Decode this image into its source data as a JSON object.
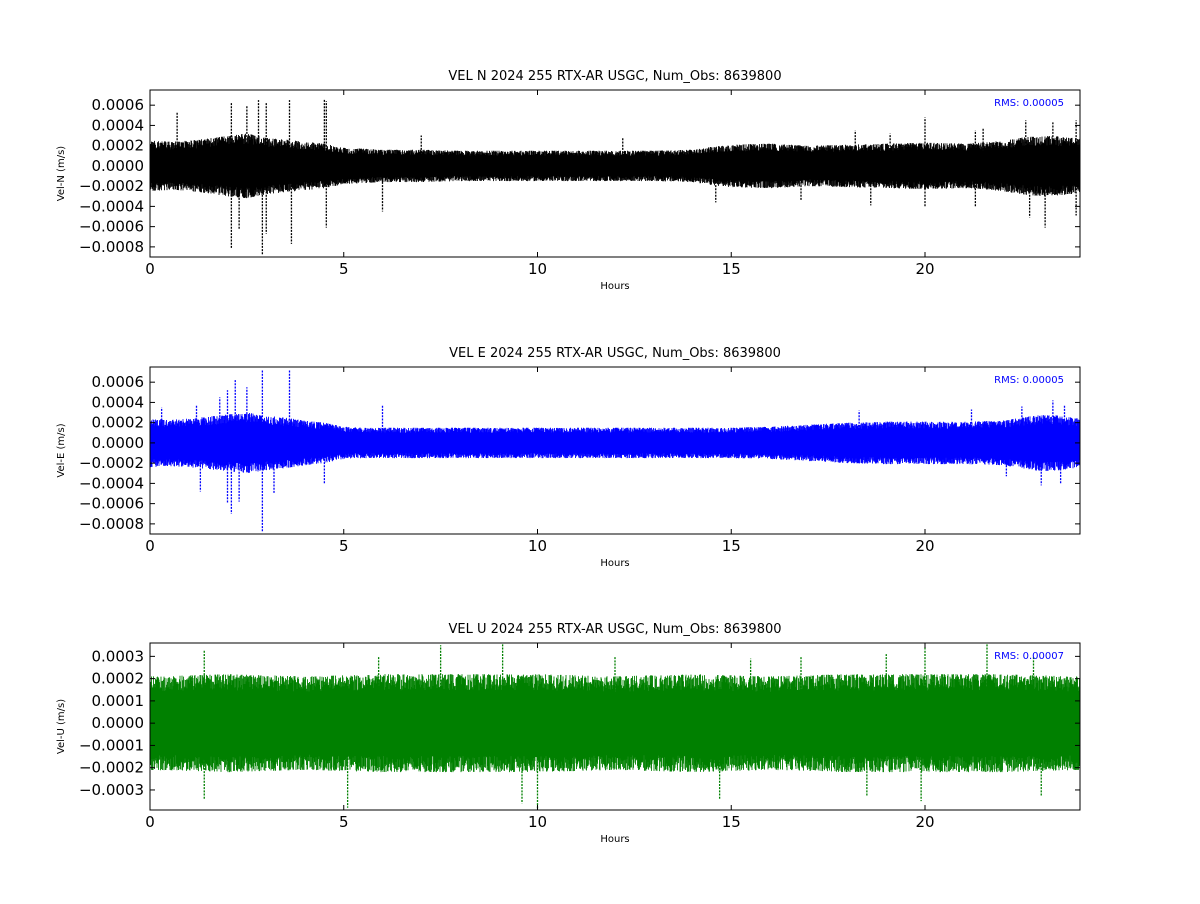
{
  "chart_data": [
    {
      "type": "scatter",
      "title": "VEL N 2024 255 RTX-AR  USGC, Num_Obs: 8639800",
      "xlabel": "Hours",
      "ylabel": "Vel-N (m/s)",
      "xlim": [
        0,
        24
      ],
      "ylim": [
        -0.0009,
        0.00075
      ],
      "xticks": [
        0,
        5,
        10,
        15,
        20
      ],
      "xtick_labels": [
        "0",
        "5",
        "10",
        "15",
        "20"
      ],
      "yticks": [
        -0.0008,
        -0.0006,
        -0.0004,
        -0.0002,
        0.0,
        0.0002,
        0.0004,
        0.0006
      ],
      "ytick_labels": [
        "−0.0008",
        "−0.0006",
        "−0.0004",
        "−0.0002",
        "0.0000",
        "0.0002",
        "0.0004",
        "0.0006"
      ],
      "rms_label": "RMS:  0.00005",
      "rms_color": "#0000ff",
      "series_color": "#000000",
      "grid": false,
      "envelope": {
        "hours": [
          0,
          0.5,
          1,
          1.5,
          2,
          2.5,
          3,
          3.5,
          4,
          4.5,
          5,
          5.5,
          6,
          7,
          8,
          9,
          10,
          11,
          12,
          13,
          14,
          14.5,
          15,
          16,
          17,
          18,
          19,
          20,
          21,
          21.5,
          22,
          22.5,
          23,
          23.5,
          24
        ],
        "upper": [
          0.00025,
          0.00024,
          0.00025,
          0.00027,
          0.0003,
          0.00032,
          0.00028,
          0.00026,
          0.00024,
          0.00022,
          0.00018,
          0.00017,
          0.00016,
          0.00016,
          0.00015,
          0.00015,
          0.00015,
          0.00015,
          0.00015,
          0.00015,
          0.00016,
          0.00019,
          0.00021,
          0.00022,
          0.0002,
          0.00021,
          0.00022,
          0.00023,
          0.00022,
          0.00023,
          0.00025,
          0.00028,
          0.0003,
          0.00029,
          0.00027
        ],
        "lower": [
          -0.00025,
          -0.00024,
          -0.00025,
          -0.00027,
          -0.0003,
          -0.00032,
          -0.00028,
          -0.00026,
          -0.00024,
          -0.00022,
          -0.00018,
          -0.00017,
          -0.00016,
          -0.00016,
          -0.00015,
          -0.00015,
          -0.00015,
          -0.00015,
          -0.00015,
          -0.00015,
          -0.00016,
          -0.00019,
          -0.00021,
          -0.00022,
          -0.0002,
          -0.00021,
          -0.00022,
          -0.00023,
          -0.00022,
          -0.00023,
          -0.00025,
          -0.00028,
          -0.0003,
          -0.00029,
          -0.00027
        ]
      },
      "spikes": [
        [
          0.7,
          0.00053
        ],
        [
          2.1,
          0.00063
        ],
        [
          2.5,
          0.0006
        ],
        [
          2.8,
          0.00065
        ],
        [
          3.0,
          0.00062
        ],
        [
          3.6,
          0.00065
        ],
        [
          4.5,
          0.00066
        ],
        [
          4.55,
          0.00064
        ],
        [
          7.0,
          0.0003
        ],
        [
          12.2,
          0.00028
        ],
        [
          18.2,
          0.00035
        ],
        [
          19.1,
          0.00032
        ],
        [
          20.0,
          0.00048
        ],
        [
          21.3,
          0.00035
        ],
        [
          21.5,
          0.00037
        ],
        [
          22.6,
          0.00045
        ],
        [
          23.3,
          0.00043
        ],
        [
          23.9,
          0.00045
        ],
        [
          2.1,
          -0.00082
        ],
        [
          2.3,
          -0.00063
        ],
        [
          2.9,
          -0.00088
        ],
        [
          3.0,
          -0.00067
        ],
        [
          3.65,
          -0.00077
        ],
        [
          4.55,
          -0.00061
        ],
        [
          6.0,
          -0.00045
        ],
        [
          14.6,
          -0.00036
        ],
        [
          16.8,
          -0.00034
        ],
        [
          18.6,
          -0.00039
        ],
        [
          20.0,
          -0.0004
        ],
        [
          21.3,
          -0.00041
        ],
        [
          22.7,
          -0.00051
        ],
        [
          23.1,
          -0.00061
        ],
        [
          23.9,
          -0.00049
        ]
      ]
    },
    {
      "type": "scatter",
      "title": "VEL E 2024 255 RTX-AR  USGC, Num_Obs: 8639800",
      "xlabel": "Hours",
      "ylabel": "Vel-E (m/s)",
      "xlim": [
        0,
        24
      ],
      "ylim": [
        -0.0009,
        0.00075
      ],
      "xticks": [
        0,
        5,
        10,
        15,
        20
      ],
      "xtick_labels": [
        "0",
        "5",
        "10",
        "15",
        "20"
      ],
      "yticks": [
        -0.0008,
        -0.0006,
        -0.0004,
        -0.0002,
        0.0,
        0.0002,
        0.0004,
        0.0006
      ],
      "ytick_labels": [
        "−0.0008",
        "−0.0006",
        "−0.0004",
        "−0.0002",
        "0.0000",
        "0.0002",
        "0.0004",
        "0.0006"
      ],
      "rms_label": "RMS:  0.00005",
      "rms_color": "#0000ff",
      "series_color": "#0000ff",
      "grid": false,
      "envelope": {
        "hours": [
          0,
          0.5,
          1,
          1.5,
          2,
          2.5,
          3,
          3.5,
          4,
          4.5,
          5,
          5.5,
          6,
          7,
          8,
          9,
          10,
          11,
          12,
          13,
          14,
          15,
          16,
          17,
          18,
          19,
          20,
          21,
          22,
          22.5,
          23,
          23.5,
          24
        ],
        "upper": [
          0.00024,
          0.00023,
          0.00024,
          0.00026,
          0.00028,
          0.0003,
          0.00027,
          0.00025,
          0.00022,
          0.0002,
          0.00016,
          0.00015,
          0.00015,
          0.00015,
          0.00015,
          0.00015,
          0.00015,
          0.00015,
          0.00015,
          0.00015,
          0.00015,
          0.00015,
          0.00016,
          0.00018,
          0.0002,
          0.00021,
          0.00021,
          0.00021,
          0.00022,
          0.00025,
          0.00028,
          0.00027,
          0.00024
        ],
        "lower": [
          -0.00024,
          -0.00023,
          -0.00024,
          -0.00026,
          -0.00028,
          -0.0003,
          -0.00027,
          -0.00025,
          -0.00022,
          -0.0002,
          -0.00016,
          -0.00015,
          -0.00015,
          -0.00015,
          -0.00015,
          -0.00015,
          -0.00015,
          -0.00015,
          -0.00015,
          -0.00015,
          -0.00015,
          -0.00015,
          -0.00016,
          -0.00018,
          -0.0002,
          -0.00021,
          -0.00021,
          -0.00021,
          -0.00022,
          -0.00025,
          -0.00028,
          -0.00027,
          -0.00024
        ]
      },
      "spikes": [
        [
          0.3,
          0.00035
        ],
        [
          1.2,
          0.00038
        ],
        [
          1.8,
          0.00045
        ],
        [
          2.0,
          0.00052
        ],
        [
          2.2,
          0.00062
        ],
        [
          2.5,
          0.00055
        ],
        [
          2.9,
          0.00072
        ],
        [
          3.6,
          0.00072
        ],
        [
          6.0,
          0.00038
        ],
        [
          18.3,
          0.00032
        ],
        [
          21.2,
          0.00033
        ],
        [
          22.5,
          0.00036
        ],
        [
          23.3,
          0.00042
        ],
        [
          23.6,
          0.00038
        ],
        [
          1.3,
          -0.00048
        ],
        [
          2.0,
          -0.0006
        ],
        [
          2.1,
          -0.0007
        ],
        [
          2.3,
          -0.00058
        ],
        [
          2.9,
          -0.00088
        ],
        [
          3.2,
          -0.0005
        ],
        [
          4.5,
          -0.0004
        ],
        [
          22.1,
          -0.00033
        ],
        [
          23.0,
          -0.00042
        ],
        [
          23.5,
          -0.0004
        ]
      ]
    },
    {
      "type": "scatter",
      "title": "VEL U 2024 255 RTX-AR  USGC, Num_Obs: 8639800",
      "xlabel": "Hours",
      "ylabel": "Vel-U (m/s)",
      "xlim": [
        0,
        24
      ],
      "ylim": [
        -0.00039,
        0.00036
      ],
      "xticks": [
        0,
        5,
        10,
        15,
        20
      ],
      "xtick_labels": [
        "0",
        "5",
        "10",
        "15",
        "20"
      ],
      "yticks": [
        -0.0003,
        -0.0002,
        -0.0001,
        0.0,
        0.0001,
        0.0002,
        0.0003
      ],
      "ytick_labels": [
        "−0.0003",
        "−0.0002",
        "−0.0001",
        "0.0000",
        "0.0001",
        "0.0002",
        "0.0003"
      ],
      "rms_label": "RMS:  0.00007",
      "rms_color": "#0000ff",
      "series_color": "#008000",
      "grid": false,
      "envelope": {
        "hours": [
          0,
          2,
          4,
          6,
          8,
          10,
          12,
          14,
          16,
          18,
          20,
          22,
          24
        ],
        "upper": [
          0.00021,
          0.00022,
          0.00021,
          0.00022,
          0.00022,
          0.00022,
          0.00021,
          0.00022,
          0.00021,
          0.00022,
          0.00022,
          0.00022,
          0.00021
        ],
        "lower": [
          -0.00021,
          -0.00022,
          -0.00021,
          -0.00022,
          -0.00022,
          -0.00022,
          -0.00021,
          -0.00022,
          -0.00021,
          -0.00022,
          -0.00022,
          -0.00022,
          -0.00021
        ]
      },
      "spikes": [
        [
          1.4,
          0.00033
        ],
        [
          5.9,
          0.0003
        ],
        [
          7.5,
          0.00035
        ],
        [
          9.1,
          0.00036
        ],
        [
          12.0,
          0.0003
        ],
        [
          15.5,
          0.00029
        ],
        [
          16.8,
          0.0003
        ],
        [
          19.0,
          0.00031
        ],
        [
          20.0,
          0.00034
        ],
        [
          21.6,
          0.00036
        ],
        [
          22.8,
          0.0003
        ],
        [
          1.4,
          -0.00034
        ],
        [
          5.1,
          -0.00038
        ],
        [
          9.6,
          -0.00036
        ],
        [
          10.0,
          -0.00039
        ],
        [
          14.7,
          -0.00034
        ],
        [
          18.5,
          -0.00033
        ],
        [
          19.9,
          -0.00035
        ],
        [
          23.0,
          -0.00033
        ]
      ]
    }
  ]
}
